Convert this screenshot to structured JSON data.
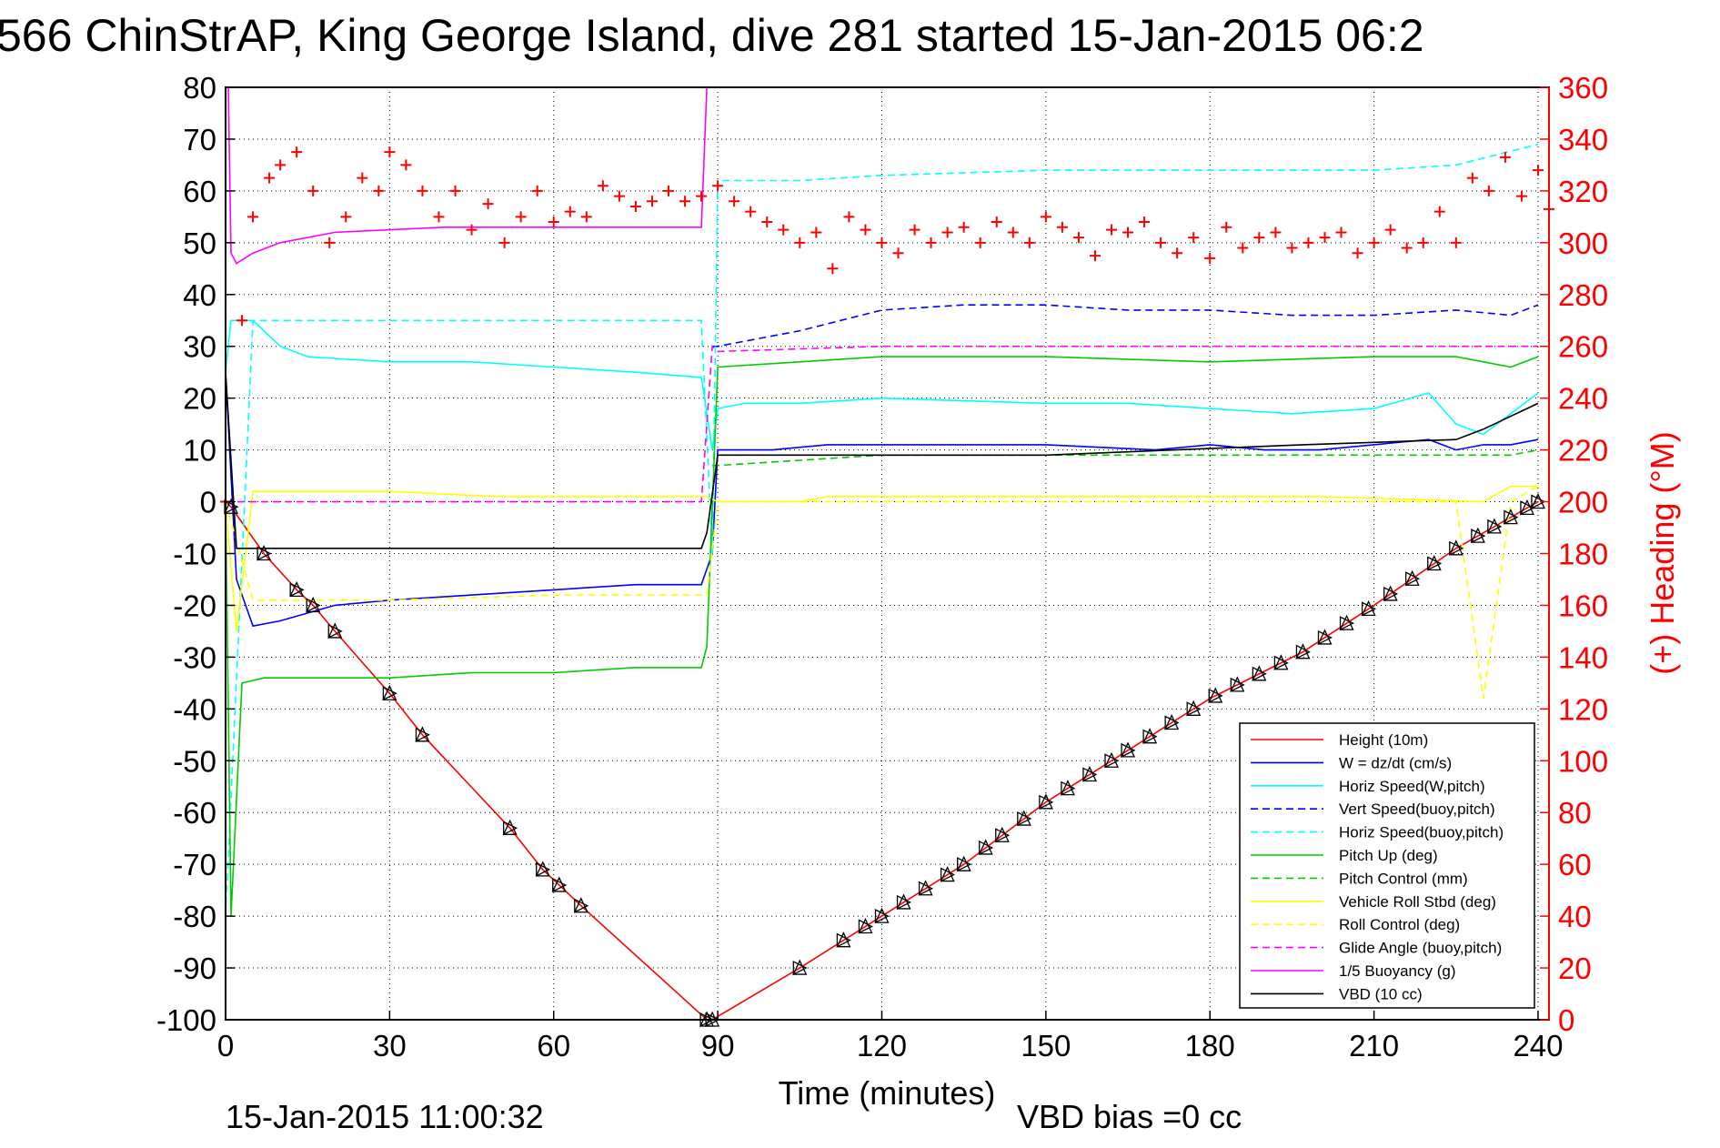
{
  "chart_data": {
    "type": "line",
    "title": "566 ChinStrAP, King George Island, dive 281 started 15-Jan-2015 06:2",
    "xlabel": "Time (minutes)",
    "ylabel_right": "(+) Heading (°M)",
    "xlim": [
      0,
      242
    ],
    "ylim": [
      -100,
      80
    ],
    "ylim_right": [
      0,
      360
    ],
    "x_ticks": [
      0,
      30,
      60,
      90,
      120,
      150,
      180,
      210,
      240
    ],
    "y_ticks": [
      -100,
      -90,
      -80,
      -70,
      -60,
      -50,
      -40,
      -30,
      -20,
      -10,
      0,
      10,
      20,
      30,
      40,
      50,
      60,
      70,
      80
    ],
    "y_ticks_right": [
      0,
      20,
      40,
      60,
      80,
      100,
      120,
      140,
      160,
      180,
      200,
      220,
      240,
      260,
      280,
      300,
      320,
      340,
      360
    ],
    "x_tick_labels": [
      "0",
      "30",
      "60",
      "90",
      "120",
      "150",
      "180",
      "210",
      "240"
    ],
    "y_tick_labels": [
      "-100",
      "-90",
      "-80",
      "-70",
      "-60",
      "-50",
      "-40",
      "-30",
      "-20",
      "-10",
      "0",
      "10",
      "20",
      "30",
      "40",
      "50",
      "60",
      "70",
      "80"
    ],
    "y_tick_labels_right": [
      "0",
      "20",
      "40",
      "60",
      "80",
      "100",
      "120",
      "140",
      "160",
      "180",
      "200",
      "220",
      "240",
      "260",
      "280",
      "300",
      "320",
      "340",
      "360"
    ],
    "grid": true,
    "legend_placement": "bottom-right",
    "series": [
      {
        "name": "Height (10m)",
        "color": "#ff0000",
        "style": "solid",
        "x": [
          0,
          1,
          7,
          13,
          16,
          20,
          30,
          36,
          52,
          58,
          61,
          65,
          88,
          89,
          105,
          120,
          135,
          150,
          165,
          180,
          197,
          210,
          225,
          240
        ],
        "y": [
          0,
          -1,
          -10,
          -17,
          -20,
          -25,
          -37,
          -45,
          -63,
          -71,
          -74,
          -78,
          -100,
          -100,
          -90,
          -80,
          -70,
          -58,
          -48,
          -38,
          -29,
          -20,
          -9,
          0
        ]
      },
      {
        "name": "W = dz/dt (cm/s)",
        "color": "#0000ff",
        "style": "solid",
        "x": [
          0,
          2,
          5,
          10,
          20,
          30,
          45,
          60,
          75,
          87,
          89,
          90,
          100,
          110,
          130,
          150,
          170,
          180,
          190,
          200,
          210,
          220,
          225,
          230,
          235,
          240
        ],
        "y": [
          25,
          -15,
          -24,
          -23,
          -20,
          -19,
          -18,
          -17,
          -16,
          -16,
          -10,
          10,
          10,
          11,
          11,
          11,
          10,
          11,
          10,
          10,
          11,
          12,
          10,
          11,
          11,
          12
        ]
      },
      {
        "name": "Horiz Speed(W,pitch)",
        "color": "#00ffff",
        "style": "solid",
        "x": [
          0,
          1,
          5,
          10,
          15,
          30,
          45,
          60,
          75,
          87,
          89,
          90,
          95,
          105,
          120,
          150,
          165,
          180,
          195,
          210,
          220,
          225,
          230,
          235,
          240
        ],
        "y": [
          25,
          35,
          35,
          30,
          28,
          27,
          27,
          26,
          25,
          24,
          10,
          18,
          19,
          19,
          20,
          19,
          19,
          18,
          17,
          18,
          21,
          15,
          13,
          17,
          21
        ]
      },
      {
        "name": "Vert Speed(buoy,pitch)",
        "color": "#0000ff",
        "style": "dashed",
        "x": [
          89,
          90,
          105,
          120,
          135,
          150,
          165,
          180,
          195,
          210,
          225,
          235,
          240
        ],
        "y": [
          30,
          30,
          33,
          37,
          38,
          38,
          37,
          37,
          36,
          36,
          37,
          36,
          38
        ]
      },
      {
        "name": "Horiz Speed(buoy,pitch)",
        "color": "#00ffff",
        "style": "dashed",
        "x": [
          0,
          5,
          87,
          89,
          90,
          105,
          120,
          150,
          180,
          210,
          225,
          240
        ],
        "y": [
          -80,
          35,
          35,
          -10,
          62,
          62,
          63,
          64,
          64,
          64,
          65,
          69
        ]
      },
      {
        "name": "Pitch Up (deg)",
        "color": "#00cc00",
        "style": "solid",
        "x": [
          0,
          1,
          3,
          7,
          15,
          30,
          45,
          60,
          75,
          87,
          88,
          90,
          105,
          120,
          150,
          180,
          210,
          225,
          235,
          240
        ],
        "y": [
          0,
          -80,
          -35,
          -34,
          -34,
          -34,
          -33,
          -33,
          -32,
          -32,
          -28,
          26,
          27,
          28,
          28,
          27,
          28,
          28,
          26,
          28
        ]
      },
      {
        "name": "Pitch Control (mm)",
        "color": "#00cc00",
        "style": "dashed",
        "x": [
          89,
          90,
          105,
          120,
          150,
          180,
          210,
          235,
          240
        ],
        "y": [
          7,
          7,
          8,
          9,
          9,
          9,
          9,
          9,
          10
        ]
      },
      {
        "name": "Vehicle Roll Stbd (deg)",
        "color": "#ffff00",
        "style": "solid",
        "x": [
          0,
          2,
          5,
          10,
          30,
          50,
          70,
          88,
          90,
          105,
          110,
          150,
          200,
          230,
          235,
          240
        ],
        "y": [
          0,
          -25,
          2,
          2,
          2,
          1,
          1,
          1,
          0,
          0,
          1,
          1,
          1,
          0,
          3,
          3
        ]
      },
      {
        "name": "Roll Control (deg)",
        "color": "#ffff00",
        "style": "dashed",
        "x": [
          0,
          5,
          30,
          60,
          88,
          90,
          120,
          150,
          180,
          210,
          225,
          230,
          235,
          240
        ],
        "y": [
          0,
          -19,
          -19,
          -18,
          -18,
          0,
          0,
          0,
          0,
          0,
          0,
          -38,
          0,
          3
        ]
      },
      {
        "name": "Glide Angle (buoy,pitch)",
        "color": "#ff00ff",
        "style": "dashed",
        "x": [
          0,
          87,
          89,
          90,
          120,
          150,
          180,
          210,
          240
        ],
        "y": [
          0,
          0,
          30,
          29,
          30,
          30,
          30,
          30,
          30
        ]
      },
      {
        "name": "1/5 Buoyancy (g)",
        "color": "#ff00ff",
        "style": "solid",
        "x": [
          0.5,
          1,
          2,
          5,
          10,
          20,
          40,
          60,
          87,
          88
        ],
        "y": [
          80,
          48,
          46,
          48,
          50,
          52,
          53,
          53,
          53,
          80
        ]
      },
      {
        "name": "VBD (10 cc)",
        "color": "#000000",
        "style": "solid",
        "x": [
          0,
          2,
          5,
          30,
          60,
          87,
          88,
          90,
          110,
          150,
          197,
          225,
          230,
          240
        ],
        "y": [
          25,
          -9,
          -9,
          -9,
          -9,
          -9,
          -6,
          9,
          9,
          9,
          11,
          12,
          14,
          19
        ]
      }
    ],
    "heading_series": {
      "name": "(+) Heading",
      "color": "#ff0000",
      "marker": "+",
      "axis": "right",
      "x": [
        0,
        3,
        5,
        8,
        10,
        13,
        16,
        19,
        22,
        25,
        28,
        30,
        33,
        36,
        39,
        42,
        45,
        48,
        51,
        54,
        57,
        60,
        63,
        66,
        69,
        72,
        75,
        78,
        81,
        84,
        87,
        90,
        93,
        96,
        99,
        102,
        105,
        108,
        111,
        114,
        117,
        120,
        123,
        126,
        129,
        132,
        135,
        138,
        141,
        144,
        147,
        150,
        153,
        156,
        159,
        162,
        165,
        168,
        171,
        174,
        177,
        180,
        183,
        186,
        189,
        192,
        195,
        198,
        201,
        204,
        207,
        210,
        213,
        216,
        219,
        222,
        225,
        228,
        231,
        234,
        237,
        240,
        242
      ],
      "y": [
        200,
        270,
        310,
        325,
        330,
        335,
        320,
        300,
        310,
        325,
        320,
        335,
        330,
        320,
        310,
        320,
        305,
        315,
        300,
        310,
        320,
        308,
        312,
        310,
        322,
        318,
        314,
        316,
        320,
        316,
        318,
        322,
        316,
        312,
        308,
        305,
        300,
        304,
        290,
        310,
        305,
        300,
        296,
        305,
        300,
        304,
        306,
        300,
        308,
        304,
        300,
        310,
        306,
        302,
        295,
        305,
        304,
        308,
        300,
        296,
        302,
        294,
        306,
        298,
        302,
        304,
        298,
        300,
        302,
        304,
        296,
        300,
        305,
        298,
        300,
        312,
        300,
        325,
        320,
        333,
        318,
        328,
        313
      ]
    },
    "legend": [
      "Height (10m)",
      "W = dz/dt (cm/s)",
      "Horiz Speed(W,pitch)",
      "Vert Speed(buoy,pitch)",
      "Horiz Speed(buoy,pitch)",
      "Pitch Up (deg)",
      "Pitch Control (mm)",
      "Vehicle Roll Stbd (deg)",
      "Roll Control (deg)",
      "Glide Angle (buoy,pitch)",
      "1/5 Buoyancy (g)",
      "VBD (10 cc)"
    ],
    "annotations": {
      "date_stamp": "15-Jan-2015 11:00:32",
      "vbd_bias": "VBD bias =0 cc"
    },
    "height_markers_x": [
      1,
      7,
      13,
      16,
      20,
      30,
      36,
      52,
      58,
      61,
      65,
      88,
      89,
      105,
      113,
      117,
      120,
      124,
      128,
      132,
      135,
      139,
      142,
      146,
      150,
      154,
      158,
      162,
      165,
      169,
      173,
      177,
      181,
      185,
      189,
      193,
      197,
      201,
      205,
      209,
      213,
      217,
      221,
      225,
      229,
      232,
      235,
      238,
      240
    ],
    "colors": {
      "background": "#ffffff",
      "axis": "#000000",
      "right_axis": "#ff0000",
      "grid": "#000000"
    }
  }
}
